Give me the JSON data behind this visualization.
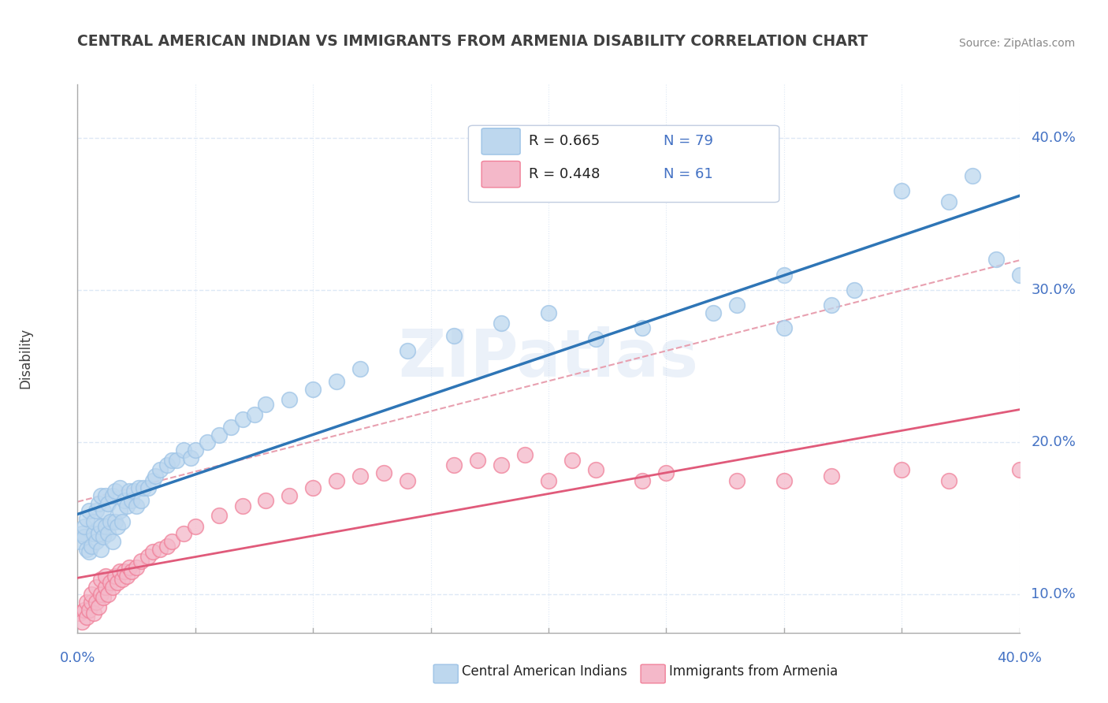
{
  "title": "CENTRAL AMERICAN INDIAN VS IMMIGRANTS FROM ARMENIA DISABILITY CORRELATION CHART",
  "source": "Source: ZipAtlas.com",
  "ylabel": "Disability",
  "xlabel": "",
  "xlim": [
    0.0,
    0.4
  ],
  "ylim": [
    0.075,
    0.435
  ],
  "ytick_vals": [
    0.1,
    0.2,
    0.3,
    0.4
  ],
  "ytick_labels": [
    "10.0%",
    "20.0%",
    "30.0%",
    "40.0%"
  ],
  "xtick_vals": [
    0.0,
    0.4
  ],
  "xtick_labels": [
    "0.0%",
    "40.0%"
  ],
  "legend_R1": "R = 0.665",
  "legend_N1": "N = 79",
  "legend_R2": "R = 0.448",
  "legend_N2": "N = 61",
  "color_blue_fill": "#bdd7ee",
  "color_blue_edge": "#9dc3e6",
  "color_pink_fill": "#f4b8c9",
  "color_pink_edge": "#f08099",
  "color_blue_line": "#2e75b6",
  "color_pink_line": "#e05a7a",
  "color_dashed_line": "#e8a0b0",
  "blue_scatter_x": [
    0.001,
    0.002,
    0.003,
    0.003,
    0.004,
    0.004,
    0.005,
    0.005,
    0.006,
    0.007,
    0.007,
    0.008,
    0.008,
    0.009,
    0.009,
    0.01,
    0.01,
    0.01,
    0.011,
    0.011,
    0.012,
    0.012,
    0.013,
    0.013,
    0.014,
    0.015,
    0.015,
    0.016,
    0.016,
    0.017,
    0.018,
    0.018,
    0.019,
    0.02,
    0.021,
    0.022,
    0.023,
    0.024,
    0.025,
    0.026,
    0.027,
    0.028,
    0.03,
    0.032,
    0.033,
    0.035,
    0.038,
    0.04,
    0.042,
    0.045,
    0.048,
    0.05,
    0.055,
    0.06,
    0.065,
    0.07,
    0.075,
    0.08,
    0.09,
    0.1,
    0.11,
    0.12,
    0.14,
    0.16,
    0.18,
    0.2,
    0.22,
    0.24,
    0.27,
    0.28,
    0.3,
    0.3,
    0.32,
    0.33,
    0.35,
    0.37,
    0.38,
    0.39,
    0.4
  ],
  "blue_scatter_y": [
    0.135,
    0.14,
    0.138,
    0.145,
    0.13,
    0.15,
    0.128,
    0.155,
    0.132,
    0.14,
    0.148,
    0.135,
    0.155,
    0.14,
    0.16,
    0.13,
    0.145,
    0.165,
    0.138,
    0.155,
    0.145,
    0.165,
    0.14,
    0.16,
    0.148,
    0.135,
    0.165,
    0.148,
    0.168,
    0.145,
    0.155,
    0.17,
    0.148,
    0.162,
    0.158,
    0.168,
    0.162,
    0.168,
    0.158,
    0.17,
    0.162,
    0.17,
    0.17,
    0.175,
    0.178,
    0.182,
    0.185,
    0.188,
    0.188,
    0.195,
    0.19,
    0.195,
    0.2,
    0.205,
    0.21,
    0.215,
    0.218,
    0.225,
    0.228,
    0.235,
    0.24,
    0.248,
    0.26,
    0.27,
    0.278,
    0.285,
    0.268,
    0.275,
    0.285,
    0.29,
    0.275,
    0.31,
    0.29,
    0.3,
    0.365,
    0.358,
    0.375,
    0.32,
    0.31
  ],
  "pink_scatter_x": [
    0.001,
    0.002,
    0.003,
    0.004,
    0.004,
    0.005,
    0.006,
    0.006,
    0.007,
    0.008,
    0.008,
    0.009,
    0.01,
    0.01,
    0.011,
    0.012,
    0.012,
    0.013,
    0.014,
    0.015,
    0.016,
    0.017,
    0.018,
    0.019,
    0.02,
    0.021,
    0.022,
    0.023,
    0.025,
    0.027,
    0.03,
    0.032,
    0.035,
    0.038,
    0.04,
    0.045,
    0.05,
    0.06,
    0.07,
    0.08,
    0.09,
    0.1,
    0.11,
    0.12,
    0.13,
    0.14,
    0.16,
    0.17,
    0.18,
    0.19,
    0.2,
    0.21,
    0.22,
    0.24,
    0.25,
    0.28,
    0.3,
    0.32,
    0.35,
    0.37,
    0.4
  ],
  "pink_scatter_y": [
    0.088,
    0.082,
    0.09,
    0.085,
    0.095,
    0.09,
    0.095,
    0.1,
    0.088,
    0.095,
    0.105,
    0.092,
    0.1,
    0.11,
    0.098,
    0.105,
    0.112,
    0.1,
    0.108,
    0.105,
    0.112,
    0.108,
    0.115,
    0.11,
    0.115,
    0.112,
    0.118,
    0.115,
    0.118,
    0.122,
    0.125,
    0.128,
    0.13,
    0.132,
    0.135,
    0.14,
    0.145,
    0.152,
    0.158,
    0.162,
    0.165,
    0.17,
    0.175,
    0.178,
    0.18,
    0.175,
    0.185,
    0.188,
    0.185,
    0.192,
    0.175,
    0.188,
    0.182,
    0.175,
    0.18,
    0.175,
    0.175,
    0.178,
    0.182,
    0.175,
    0.182
  ],
  "watermark_text": "ZIPatlas",
  "background_color": "#ffffff",
  "grid_color": "#dde8f5",
  "title_color": "#404040",
  "axis_label_color": "#404040",
  "tick_color": "#4472c4",
  "legend_box_color": "#e8eef8"
}
